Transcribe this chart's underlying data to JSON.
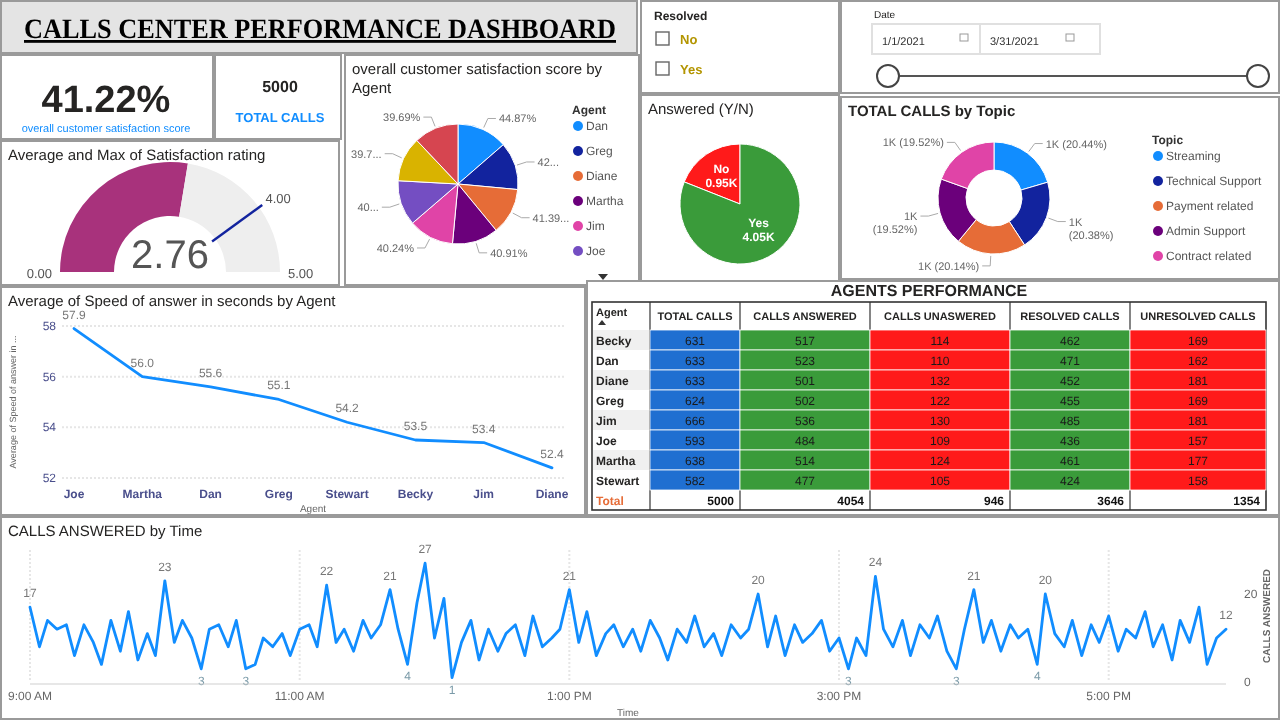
{
  "chart_data": [
    {
      "type": "other",
      "title": "CALLS CENTER PERFORMANCE DASHBOARD",
      "annotations": [
        "41.22%",
        "overall customer satisfaction score",
        "5000",
        "TOTAL CALLS",
        "Resolved",
        "No",
        "Yes",
        "Date",
        "1/1/2021",
        "3/31/2021"
      ]
    },
    {
      "type": "donut",
      "title": "Average and Max of Satisfaction rating",
      "categories": [
        null,
        null
      ],
      "values": [
        2.76,
        2.24
      ],
      "colors": [
        "#a8327c",
        "#eeeeee"
      ],
      "annotations": [
        "0.00",
        "5.00",
        "4.00"
      ],
      "value_labels": [
        "2.76",
        null
      ]
    },
    {
      "type": "pie",
      "title": "overall customer satisfaction score by Agent",
      "legend_title": "Agent",
      "legend": "right",
      "categories": [
        "Dan",
        "Greg",
        "Diane",
        "Martha",
        "Jim",
        "Joe",
        null,
        null
      ],
      "values": [
        44.87,
        42.3,
        41.39,
        40.91,
        40.24,
        40.1,
        39.75,
        39.69
      ],
      "colors": [
        "#118dff",
        "#12239e",
        "#e66c37",
        "#6b007b",
        "#e044a7",
        "#744ec2",
        "#d9b300",
        "#d64550"
      ],
      "value_labels": [
        "44.87%",
        "42...",
        "41.39...",
        "40.91%",
        "40.24%",
        "40...",
        "39.7...",
        "39.69%"
      ]
    },
    {
      "type": "pie",
      "title": "Answered (Y/N)",
      "categories": [
        "No",
        "Yes"
      ],
      "values": [
        950,
        4050
      ],
      "colors": [
        "#ff1a1a",
        "#3a9b3a"
      ],
      "value_labels": [
        "0.95K",
        "4.05K"
      ]
    },
    {
      "type": "donut",
      "title": "TOTAL CALLS by Topic",
      "legend_title": "Topic",
      "legend": "right",
      "categories": [
        "Streaming",
        "Technical Support",
        "Payment related",
        "Admin Support",
        "Contract related"
      ],
      "values": [
        20.44,
        20.38,
        20.14,
        19.52,
        19.52
      ],
      "colors": [
        "#118dff",
        "#12239e",
        "#e66c37",
        "#6b007b",
        "#e044a7"
      ],
      "value_labels": [
        "1K (20.44%)",
        "1K (20.38%)",
        "1K (20.14%)",
        "1K (19.52%)",
        "1K (19.52%)"
      ]
    },
    {
      "type": "line",
      "title": "Average of Speed of answer in seconds by Agent",
      "xlabel": "Agent",
      "ylabel": "Average of Speed of answer in ...",
      "categories": [
        "Joe",
        "Martha",
        "Dan",
        "Greg",
        "Stewart",
        "Becky",
        "Jim",
        "Diane"
      ],
      "series": [
        {
          "color": "#118dff",
          "values": [
            57.9,
            56.0,
            55.6,
            55.1,
            54.2,
            53.5,
            53.4,
            52.4
          ]
        }
      ],
      "value_labels": [
        "57.9",
        "56.0",
        "55.6",
        "55.1",
        "54.2",
        "53.5",
        "53.4",
        "52.4"
      ],
      "ylim": [
        52,
        58
      ],
      "yticks": [
        52,
        54,
        56,
        58
      ],
      "grid": "y"
    },
    {
      "type": "heatmap",
      "title": "AGENTS PERFORMANCE",
      "ylabel": "Agent",
      "categories": [
        "TOTAL CALLS",
        "CALLS ANSWERED",
        "CALLS UNASWERED",
        "RESOLVED CALLS",
        "UNRESOLVED CALLS"
      ],
      "y_categories": [
        "Becky",
        "Dan",
        "Diane",
        "Greg",
        "Jim",
        "Joe",
        "Martha",
        "Stewart"
      ],
      "colors": [
        "#1f6fd1",
        "#3a9b3a",
        "#ff1a1a",
        "#3a9b3a",
        "#ff1a1a"
      ],
      "cells": [
        [
          631,
          517,
          114,
          462,
          169
        ],
        [
          633,
          523,
          110,
          471,
          162
        ],
        [
          633,
          501,
          132,
          452,
          181
        ],
        [
          624,
          502,
          122,
          455,
          169
        ],
        [
          666,
          536,
          130,
          485,
          181
        ],
        [
          593,
          484,
          109,
          436,
          157
        ],
        [
          638,
          514,
          124,
          461,
          177
        ],
        [
          582,
          477,
          105,
          424,
          158
        ]
      ],
      "totals": [
        "5000",
        "4054",
        "946",
        "3646",
        "1354"
      ],
      "annotations": [
        "Total"
      ],
      "data_labels": true
    },
    {
      "type": "line",
      "title": "CALLS ANSWERED by Time",
      "xlabel": "Time",
      "y2label": "CALLS ANSWERED",
      "xlim": [
        9,
        17.87
      ],
      "xticks": [
        {
          "value": 9,
          "label": "9:00 AM"
        },
        {
          "value": 11,
          "label": "11:00 AM"
        },
        {
          "value": 13,
          "label": "1:00 PM"
        },
        {
          "value": 15,
          "label": "3:00 PM"
        },
        {
          "value": 17,
          "label": "5:00 PM"
        }
      ],
      "y2lim": [
        0,
        30
      ],
      "y2ticks": [
        0,
        20
      ],
      "grid": "x",
      "x": [
        9,
        9.07,
        9.13,
        9.2,
        9.27,
        9.33,
        9.4,
        9.47,
        9.53,
        9.6,
        9.67,
        9.73,
        9.8,
        9.87,
        9.93,
        10,
        10.07,
        10.13,
        10.2,
        10.27,
        10.33,
        10.4,
        10.47,
        10.53,
        10.6,
        10.67,
        10.73,
        10.8,
        10.87,
        10.93,
        11,
        11.07,
        11.13,
        11.2,
        11.27,
        11.33,
        11.4,
        11.47,
        11.53,
        11.6,
        11.67,
        11.73,
        11.8,
        11.87,
        11.93,
        12,
        12.07,
        12.13,
        12.2,
        12.27,
        12.33,
        12.4,
        12.47,
        12.53,
        12.6,
        12.67,
        12.73,
        12.8,
        12.87,
        12.93,
        13,
        13.07,
        13.13,
        13.2,
        13.27,
        13.33,
        13.4,
        13.47,
        13.53,
        13.6,
        13.67,
        13.73,
        13.8,
        13.87,
        13.93,
        14,
        14.07,
        14.13,
        14.2,
        14.27,
        14.33,
        14.4,
        14.47,
        14.53,
        14.6,
        14.67,
        14.73,
        14.8,
        14.87,
        14.93,
        15,
        15.07,
        15.13,
        15.2,
        15.27,
        15.33,
        15.4,
        15.47,
        15.53,
        15.6,
        15.67,
        15.73,
        15.8,
        15.87,
        15.93,
        16,
        16.07,
        16.13,
        16.2,
        16.27,
        16.33,
        16.4,
        16.47,
        16.53,
        16.6,
        16.67,
        16.73,
        16.8,
        16.87,
        16.93,
        17,
        17.07,
        17.13,
        17.2,
        17.27,
        17.33,
        17.4,
        17.47,
        17.53,
        17.6,
        17.67,
        17.73,
        17.8,
        17.87
      ],
      "series": [
        {
          "color": "#118dff",
          "axis": "y2",
          "values": [
            17,
            8,
            14,
            12,
            13,
            6,
            13,
            9,
            4,
            14,
            7,
            16,
            5,
            11,
            6,
            23,
            9,
            14,
            10,
            3,
            12,
            13,
            8,
            14,
            3,
            4,
            10,
            8,
            11,
            6,
            12,
            13,
            8,
            22,
            9,
            12,
            7,
            14,
            10,
            13,
            21,
            12,
            4,
            18,
            27,
            10,
            19,
            1,
            9,
            14,
            5,
            12,
            7,
            11,
            13,
            6,
            15,
            8,
            10,
            12,
            21,
            9,
            16,
            6,
            11,
            13,
            8,
            12,
            7,
            14,
            10,
            5,
            12,
            9,
            15,
            8,
            11,
            6,
            13,
            10,
            12,
            20,
            8,
            15,
            6,
            13,
            9,
            11,
            14,
            7,
            10,
            3,
            10,
            6,
            24,
            12,
            8,
            14,
            6,
            13,
            10,
            15,
            7,
            3,
            12,
            21,
            9,
            14,
            7,
            13,
            10,
            12,
            4,
            20,
            11,
            8,
            14,
            6,
            13,
            9,
            15,
            7,
            12,
            10,
            16,
            8,
            13,
            5,
            14,
            9,
            17,
            4,
            10,
            12
          ]
        }
      ],
      "value_labels": [
        "17",
        null,
        null,
        null,
        null,
        null,
        null,
        null,
        null,
        null,
        null,
        null,
        null,
        null,
        null,
        "23",
        null,
        null,
        null,
        "3",
        null,
        null,
        null,
        null,
        "3",
        null,
        null,
        null,
        null,
        null,
        null,
        null,
        null,
        "22",
        null,
        null,
        null,
        null,
        null,
        null,
        "21",
        null,
        "4",
        null,
        "27",
        null,
        null,
        "1",
        null,
        null,
        null,
        null,
        null,
        null,
        null,
        null,
        null,
        null,
        null,
        null,
        "21",
        null,
        null,
        null,
        null,
        null,
        null,
        null,
        null,
        null,
        null,
        null,
        null,
        null,
        null,
        null,
        null,
        null,
        null,
        null,
        null,
        "20",
        null,
        null,
        null,
        null,
        null,
        null,
        null,
        null,
        null,
        "3",
        null,
        null,
        "24",
        null,
        null,
        null,
        null,
        null,
        null,
        null,
        null,
        "3",
        null,
        "21",
        null,
        null,
        null,
        null,
        null,
        null,
        "4",
        "20",
        null,
        null,
        null,
        null,
        null,
        null,
        null,
        null,
        null,
        null,
        null,
        null,
        null,
        null,
        null,
        null,
        null,
        null,
        null,
        "12"
      ]
    }
  ]
}
